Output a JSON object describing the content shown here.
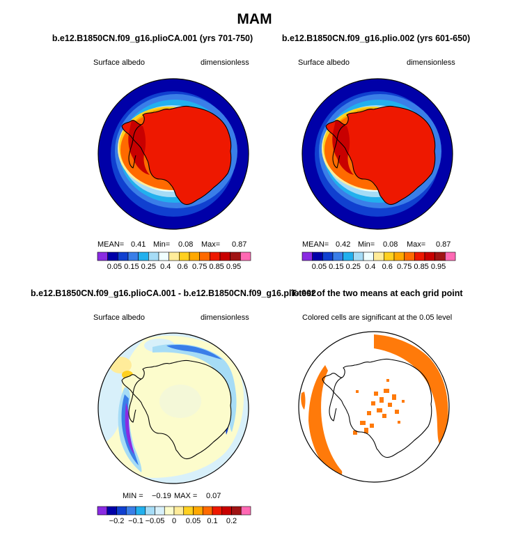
{
  "figure": {
    "title": "MAM"
  },
  "panels": [
    {
      "title": "b.e12.B1850CN.f09_g16.plioCA.001 (yrs 701-750)",
      "left_label": "Surface albedo",
      "right_label": "dimensionless",
      "stats": {
        "mean_label": "MEAN=",
        "mean": "0.41",
        "min_label": "Min=",
        "min": "0.08",
        "max_label": "Max=",
        "max": "0.87"
      },
      "colorbar_ticks": [
        "0.05",
        "0.15",
        "0.25",
        "0.4",
        "0.6",
        "0.75",
        "0.85",
        "0.95"
      ]
    },
    {
      "title": "b.e12.B1850CN.f09_g16.plio.002 (yrs 601-650)",
      "left_label": "Surface albedo",
      "right_label": "dimensionless",
      "stats": {
        "mean_label": "MEAN=",
        "mean": "0.42",
        "min_label": "Min=",
        "min": "0.08",
        "max_label": "Max=",
        "max": "0.87"
      },
      "colorbar_ticks": [
        "0.05",
        "0.15",
        "0.25",
        "0.4",
        "0.6",
        "0.75",
        "0.85",
        "0.95"
      ]
    },
    {
      "title": "b.e12.B1850CN.f09_g16.plioCA.001 - b.e12.B1850CN.f09_g16.plio.002",
      "left_label": "Surface albedo",
      "right_label": "dimensionless",
      "stats": {
        "min_label": "MIN =",
        "min": "−0.19",
        "max_label": "MAX =",
        "max": "0.07"
      },
      "colorbar_ticks": [
        "−0.2",
        "−0.1",
        "−0.05",
        "0",
        "0.05",
        "0.1",
        "0.2"
      ]
    },
    {
      "title": "T-test of the two means at each grid point",
      "left_label": "Colored cells are significant at the 0.05 level"
    }
  ],
  "chart_data": [
    {
      "type": "heatmap",
      "title": "b.e12.B1850CN.f09_g16.plioCA.001 (yrs 701-750)",
      "variable": "Surface albedo",
      "units": "dimensionless",
      "projection": "south polar stereographic",
      "stats": {
        "mean": 0.41,
        "min": 0.08,
        "max": 0.87
      },
      "colorbar": {
        "boundaries": [
          0.05,
          0.15,
          0.25,
          0.4,
          0.6,
          0.75,
          0.85,
          0.95
        ],
        "colors": [
          "#8a2be2",
          "#0000a8",
          "#1040d0",
          "#3a7ee8",
          "#22b0ee",
          "#a6dcf6",
          "#f0ffff",
          "#ffec9a",
          "#ffd020",
          "#ffa800",
          "#ff6a00",
          "#ee1800",
          "#c80000",
          "#a01414",
          "#ff69b4"
        ]
      },
      "colorbar_ticks": [
        "0.05",
        "0.15",
        "0.25",
        "0.4",
        "0.6",
        "0.75",
        "0.85",
        "0.95"
      ]
    },
    {
      "type": "heatmap",
      "title": "b.e12.B1850CN.f09_g16.plio.002 (yrs 601-650)",
      "variable": "Surface albedo",
      "units": "dimensionless",
      "projection": "south polar stereographic",
      "stats": {
        "mean": 0.42,
        "min": 0.08,
        "max": 0.87
      },
      "colorbar": {
        "boundaries": [
          0.05,
          0.15,
          0.25,
          0.4,
          0.6,
          0.75,
          0.85,
          0.95
        ],
        "colors": [
          "#8a2be2",
          "#0000a8",
          "#1040d0",
          "#3a7ee8",
          "#22b0ee",
          "#a6dcf6",
          "#f0ffff",
          "#ffec9a",
          "#ffd020",
          "#ffa800",
          "#ff6a00",
          "#ee1800",
          "#c80000",
          "#a01414",
          "#ff69b4"
        ]
      },
      "colorbar_ticks": [
        "0.05",
        "0.15",
        "0.25",
        "0.4",
        "0.6",
        "0.75",
        "0.85",
        "0.95"
      ]
    },
    {
      "type": "heatmap",
      "title": "b.e12.B1850CN.f09_g16.plioCA.001 - b.e12.B1850CN.f09_g16.plio.002",
      "variable": "Surface albedo",
      "units": "dimensionless",
      "projection": "south polar stereographic",
      "stats": {
        "min": -0.19,
        "max": 0.07
      },
      "colorbar": {
        "boundaries": [
          -0.2,
          -0.1,
          -0.05,
          0,
          0.05,
          0.1,
          0.2
        ],
        "colors": [
          "#8a2be2",
          "#0000a8",
          "#1040d0",
          "#3a7ee8",
          "#22b0ee",
          "#a6dcf6",
          "#d8f0fa",
          "#fcfccc",
          "#ffec9a",
          "#ffd020",
          "#ffa800",
          "#ff6a00",
          "#ee1800",
          "#c80000",
          "#a01414",
          "#ff69b4"
        ]
      },
      "colorbar_ticks": [
        "−0.2",
        "−0.1",
        "−0.05",
        "0",
        "0.05",
        "0.1",
        "0.2"
      ]
    },
    {
      "type": "heatmap",
      "title": "T-test of the two means at each grid point",
      "note": "Colored cells are significant at the 0.05 level",
      "significance_level": 0.05,
      "projection": "south polar stereographic",
      "colors": {
        "significant": "#ff7a0a",
        "not_significant": "#ffffff"
      }
    }
  ]
}
